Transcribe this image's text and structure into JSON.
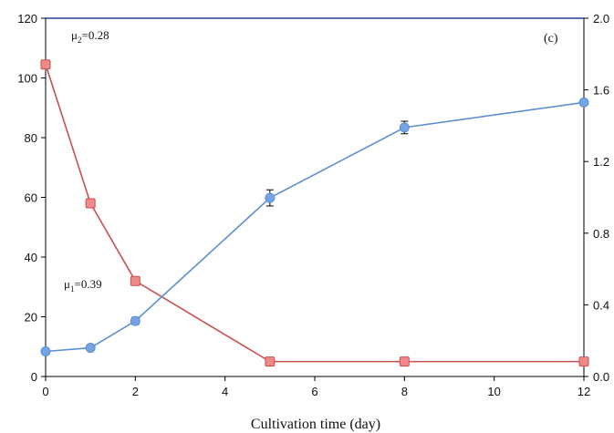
{
  "chart_data": {
    "type": "line",
    "panel_label": "(c)",
    "xlabel": "Cultivation time (day)",
    "x_ticks": [
      "0",
      "2",
      "4",
      "6",
      "8",
      "10",
      "12"
    ],
    "xlim": [
      0,
      12
    ],
    "y_left": {
      "lim": [
        0,
        120
      ],
      "ticks": [
        "0",
        "20",
        "40",
        "60",
        "80",
        "100",
        "120"
      ]
    },
    "y_right": {
      "lim": [
        0,
        2
      ],
      "ticks": [
        "0.0",
        "0.4",
        "0.8",
        "1.2",
        "1.6",
        "2.0"
      ]
    },
    "series": [
      {
        "axis": "left",
        "color": "#c9504f",
        "marker_fill": "#f08a8a",
        "marker": "square",
        "points": [
          {
            "x": 0,
            "y": 104.5
          },
          {
            "x": 1,
            "y": 58
          },
          {
            "x": 2,
            "y": 32
          },
          {
            "x": 5,
            "y": 5
          },
          {
            "x": 8,
            "y": 5
          },
          {
            "x": 12,
            "y": 5
          }
        ]
      },
      {
        "axis": "right",
        "color": "#5b8fd1",
        "marker_fill": "#74a4e4",
        "marker": "circle",
        "points": [
          {
            "x": 0,
            "y": 0.14
          },
          {
            "x": 1,
            "y": 0.16
          },
          {
            "x": 2,
            "y": 0.31,
            "err": 0.02
          },
          {
            "x": 5,
            "y": 0.997,
            "err": 0.045
          },
          {
            "x": 8,
            "y": 1.39,
            "err": 0.035
          },
          {
            "x": 12,
            "y": 1.53
          }
        ]
      }
    ],
    "annotations": {
      "mu2": {
        "sym": "μ",
        "sub": "2",
        "text": "=0.28"
      },
      "mu1": {
        "sym": "μ",
        "sub": "1",
        "text": "=0.39"
      }
    }
  }
}
